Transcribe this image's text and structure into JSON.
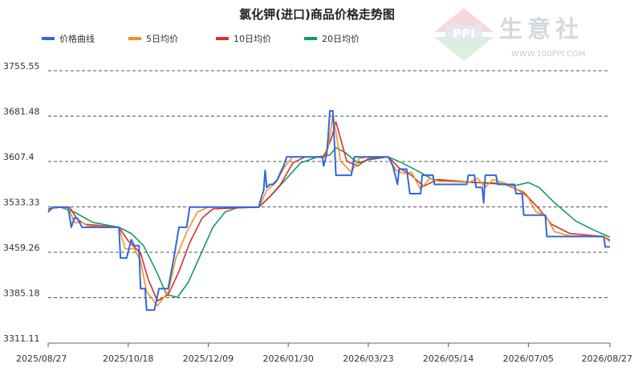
{
  "chart_data": {
    "type": "line",
    "title": "氯化钾(进口)商品价格走势图",
    "xlabel": "",
    "ylabel": "",
    "x_ticks": [
      "2025/08/27",
      "2025/10/18",
      "2025/12/09",
      "2026/01/30",
      "2026/03/23",
      "2026/05/14",
      "2026/07/05",
      "2026/08/27"
    ],
    "y_ticks": [
      "3311.11",
      "3385.18",
      "3459.26",
      "3533.33",
      "3607.4",
      "3681.48",
      "3755.55"
    ],
    "ylim": [
      3311.11,
      3755.55
    ],
    "grid": "horizontal dashed",
    "legend_position": "top-left",
    "series": [
      {
        "name": "价格曲线",
        "color": "#3366dd",
        "points": [
          [
            "2025/08/27",
            3525
          ],
          [
            "2025/08/30",
            3533
          ],
          [
            "2025/09/04",
            3533
          ],
          [
            "2025/09/09",
            3533
          ],
          [
            "2025/09/11",
            3500
          ],
          [
            "2025/09/13",
            3515
          ],
          [
            "2025/09/15",
            3515
          ],
          [
            "2025/09/18",
            3500
          ],
          [
            "2025/09/25",
            3500
          ],
          [
            "2025/10/05",
            3500
          ],
          [
            "2025/10/12",
            3500
          ],
          [
            "2025/10/13",
            3450
          ],
          [
            "2025/10/17",
            3450
          ],
          [
            "2025/10/20",
            3480
          ],
          [
            "2025/10/22",
            3470
          ],
          [
            "2025/10/25",
            3470
          ],
          [
            "2025/10/26",
            3400
          ],
          [
            "2025/10/29",
            3400
          ],
          [
            "2025/10/30",
            3365
          ],
          [
            "2025/11/04",
            3365
          ],
          [
            "2025/11/07",
            3400
          ],
          [
            "2025/11/13",
            3400
          ],
          [
            "2025/11/17",
            3455
          ],
          [
            "2025/11/20",
            3500
          ],
          [
            "2025/11/25",
            3500
          ],
          [
            "2025/11/27",
            3533
          ],
          [
            "2025/12/04",
            3533
          ],
          [
            "2025/12/20",
            3533
          ],
          [
            "2026/01/11",
            3533
          ],
          [
            "2026/01/12",
            3545
          ],
          [
            "2026/01/14",
            3560
          ],
          [
            "2026/01/15",
            3593
          ],
          [
            "2026/01/16",
            3565
          ],
          [
            "2026/01/18",
            3570
          ],
          [
            "2026/01/20",
            3570
          ],
          [
            "2026/01/23",
            3578
          ],
          [
            "2026/01/25",
            3590
          ],
          [
            "2026/01/27",
            3600
          ],
          [
            "2026/01/29",
            3615
          ],
          [
            "2026/02/10",
            3615
          ],
          [
            "2026/02/21",
            3615
          ],
          [
            "2026/02/22",
            3600
          ],
          [
            "2026/02/24",
            3620
          ],
          [
            "2026/02/25",
            3650
          ],
          [
            "2026/02/26",
            3690
          ],
          [
            "2026/02/28",
            3690
          ],
          [
            "2026/03/02",
            3585
          ],
          [
            "2026/03/12",
            3585
          ],
          [
            "2026/03/14",
            3615
          ],
          [
            "2026/03/23",
            3615
          ],
          [
            "2026/04/01",
            3615
          ],
          [
            "2026/04/05",
            3615
          ],
          [
            "2026/04/08",
            3600
          ],
          [
            "2026/04/11",
            3570
          ],
          [
            "2026/04/12",
            3595
          ],
          [
            "2026/04/17",
            3595
          ],
          [
            "2026/04/19",
            3555
          ],
          [
            "2026/04/26",
            3555
          ],
          [
            "2026/04/27",
            3585
          ],
          [
            "2026/05/04",
            3585
          ],
          [
            "2026/05/05",
            3570
          ],
          [
            "2026/05/15",
            3570
          ],
          [
            "2026/05/26",
            3570
          ],
          [
            "2026/05/27",
            3585
          ],
          [
            "2026/05/31",
            3585
          ],
          [
            "2026/06/01",
            3565
          ],
          [
            "2026/06/05",
            3565
          ],
          [
            "2026/06/06",
            3540
          ],
          [
            "2026/06/07",
            3585
          ],
          [
            "2026/06/14",
            3585
          ],
          [
            "2026/06/15",
            3570
          ],
          [
            "2026/06/26",
            3570
          ],
          [
            "2026/06/27",
            3555
          ],
          [
            "2026/07/01",
            3555
          ],
          [
            "2026/07/02",
            3520
          ],
          [
            "2026/07/12",
            3520
          ],
          [
            "2026/07/16",
            3520
          ],
          [
            "2026/07/17",
            3485
          ],
          [
            "2026/08/01",
            3485
          ],
          [
            "2026/08/17",
            3485
          ],
          [
            "2026/08/23",
            3485
          ],
          [
            "2026/08/24",
            3468
          ],
          [
            "2026/08/27",
            3468
          ]
        ]
      },
      {
        "name": "5日均价",
        "color": "#f0941e",
        "points": [
          [
            "2025/08/27",
            3527
          ],
          [
            "2025/09/01",
            3533
          ],
          [
            "2025/09/09",
            3533
          ],
          [
            "2025/09/13",
            3508
          ],
          [
            "2025/09/18",
            3508
          ],
          [
            "2025/09/22",
            3502
          ],
          [
            "2025/10/12",
            3500
          ],
          [
            "2025/10/16",
            3465
          ],
          [
            "2025/10/22",
            3465
          ],
          [
            "2025/10/26",
            3445
          ],
          [
            "2025/10/30",
            3395
          ],
          [
            "2025/11/06",
            3372
          ],
          [
            "2025/11/13",
            3395
          ],
          [
            "2025/11/18",
            3450
          ],
          [
            "2025/11/25",
            3492
          ],
          [
            "2025/12/02",
            3525
          ],
          [
            "2025/12/09",
            3533
          ],
          [
            "2026/01/11",
            3533
          ],
          [
            "2026/01/16",
            3560
          ],
          [
            "2026/01/22",
            3573
          ],
          [
            "2026/01/28",
            3600
          ],
          [
            "2026/02/02",
            3615
          ],
          [
            "2026/02/21",
            3615
          ],
          [
            "2026/02/25",
            3630
          ],
          [
            "2026/02/28",
            3685
          ],
          [
            "2026/03/05",
            3608
          ],
          [
            "2026/03/12",
            3590
          ],
          [
            "2026/03/17",
            3612
          ],
          [
            "2026/03/23",
            3615
          ],
          [
            "2026/04/05",
            3615
          ],
          [
            "2026/04/10",
            3593
          ],
          [
            "2026/04/15",
            3588
          ],
          [
            "2026/04/20",
            3590
          ],
          [
            "2026/04/26",
            3562
          ],
          [
            "2026/05/02",
            3580
          ],
          [
            "2026/05/08",
            3575
          ],
          [
            "2026/05/28",
            3574
          ],
          [
            "2026/06/02",
            3580
          ],
          [
            "2026/06/07",
            3565
          ],
          [
            "2026/06/12",
            3578
          ],
          [
            "2026/06/20",
            3572
          ],
          [
            "2026/06/30",
            3558
          ],
          [
            "2026/07/05",
            3548
          ],
          [
            "2026/07/10",
            3525
          ],
          [
            "2026/07/16",
            3520
          ],
          [
            "2026/07/22",
            3493
          ],
          [
            "2026/08/01",
            3486
          ],
          [
            "2026/08/23",
            3485
          ],
          [
            "2026/08/27",
            3476
          ]
        ]
      },
      {
        "name": "10日均价",
        "color": "#d83030",
        "points": [
          [
            "2025/08/27",
            3530
          ],
          [
            "2025/09/04",
            3533
          ],
          [
            "2025/09/10",
            3533
          ],
          [
            "2025/09/15",
            3513
          ],
          [
            "2025/09/20",
            3505
          ],
          [
            "2025/10/12",
            3500
          ],
          [
            "2025/10/18",
            3478
          ],
          [
            "2025/10/26",
            3458
          ],
          [
            "2025/10/31",
            3415
          ],
          [
            "2025/11/06",
            3380
          ],
          [
            "2025/11/13",
            3390
          ],
          [
            "2025/11/20",
            3428
          ],
          [
            "2025/11/27",
            3475
          ],
          [
            "2025/12/05",
            3515
          ],
          [
            "2025/12/12",
            3530
          ],
          [
            "2026/01/11",
            3533
          ],
          [
            "2026/01/18",
            3550
          ],
          [
            "2026/01/25",
            3570
          ],
          [
            "2026/02/02",
            3605
          ],
          [
            "2026/02/10",
            3615
          ],
          [
            "2026/02/22",
            3614
          ],
          [
            "2026/02/27",
            3645
          ],
          [
            "2026/03/02",
            3672
          ],
          [
            "2026/03/09",
            3608
          ],
          [
            "2026/03/16",
            3600
          ],
          [
            "2026/03/23",
            3612
          ],
          [
            "2026/04/05",
            3615
          ],
          [
            "2026/04/12",
            3597
          ],
          [
            "2026/04/20",
            3585
          ],
          [
            "2026/04/28",
            3567
          ],
          [
            "2026/05/07",
            3578
          ],
          [
            "2026/05/28",
            3574
          ],
          [
            "2026/06/08",
            3572
          ],
          [
            "2026/06/20",
            3570
          ],
          [
            "2026/07/02",
            3557
          ],
          [
            "2026/07/12",
            3530
          ],
          [
            "2026/07/20",
            3505
          ],
          [
            "2026/08/01",
            3490
          ],
          [
            "2026/08/23",
            3485
          ],
          [
            "2026/08/27",
            3479
          ]
        ]
      },
      {
        "name": "20日均价",
        "color": "#159966",
        "points": [
          [
            "2025/08/27",
            3530
          ],
          [
            "2025/09/04",
            3533
          ],
          [
            "2025/09/13",
            3525
          ],
          [
            "2025/09/25",
            3508
          ],
          [
            "2025/10/12",
            3500
          ],
          [
            "2025/10/20",
            3490
          ],
          [
            "2025/10/28",
            3470
          ],
          [
            "2025/11/05",
            3430
          ],
          [
            "2025/11/12",
            3390
          ],
          [
            "2025/11/19",
            3386
          ],
          [
            "2025/11/26",
            3410
          ],
          [
            "2025/12/04",
            3455
          ],
          [
            "2025/12/12",
            3500
          ],
          [
            "2025/12/20",
            3525
          ],
          [
            "2025/12/29",
            3533
          ],
          [
            "2026/01/11",
            3533
          ],
          [
            "2026/01/20",
            3555
          ],
          [
            "2026/01/29",
            3580
          ],
          [
            "2026/02/07",
            3605
          ],
          [
            "2026/02/18",
            3615
          ],
          [
            "2026/02/26",
            3618
          ],
          [
            "2026/03/02",
            3630
          ],
          [
            "2026/03/08",
            3622
          ],
          [
            "2026/03/16",
            3605
          ],
          [
            "2026/03/23",
            3610
          ],
          [
            "2026/04/05",
            3615
          ],
          [
            "2026/04/14",
            3605
          ],
          [
            "2026/04/24",
            3592
          ],
          [
            "2026/05/04",
            3578
          ],
          [
            "2026/05/14",
            3575
          ],
          [
            "2026/05/31",
            3573
          ],
          [
            "2026/06/15",
            3572
          ],
          [
            "2026/06/26",
            3568
          ],
          [
            "2026/07/05",
            3573
          ],
          [
            "2026/07/12",
            3565
          ],
          [
            "2026/07/22",
            3540
          ],
          [
            "2026/08/05",
            3510
          ],
          [
            "2026/08/17",
            3495
          ],
          [
            "2026/08/27",
            3484
          ]
        ]
      }
    ]
  },
  "watermark": {
    "brand": "生意社",
    "logo_text": "PPI",
    "url": "WWW.100PPI.COM"
  }
}
